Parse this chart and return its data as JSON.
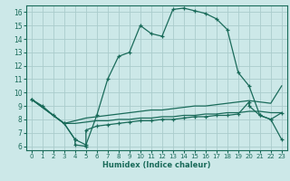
{
  "xlabel": "Humidex (Indice chaleur)",
  "bg_color": "#cce8e8",
  "grid_color": "#b8d8d8",
  "line_color": "#1a6b5a",
  "xlim": [
    -0.5,
    23.5
  ],
  "ylim": [
    5.7,
    16.5
  ],
  "xticks": [
    0,
    1,
    2,
    3,
    4,
    5,
    6,
    7,
    8,
    9,
    10,
    11,
    12,
    13,
    14,
    15,
    16,
    17,
    18,
    19,
    20,
    21,
    22,
    23
  ],
  "yticks": [
    6,
    7,
    8,
    9,
    10,
    11,
    12,
    13,
    14,
    15,
    16
  ],
  "main_x": [
    0,
    1,
    2,
    3,
    4,
    5,
    6,
    7,
    8,
    9,
    10,
    11,
    12,
    13,
    14,
    15,
    16,
    17,
    18,
    19,
    20,
    21,
    22,
    23
  ],
  "main_y": [
    9.5,
    9.0,
    8.3,
    7.7,
    6.5,
    6.1,
    8.3,
    11.0,
    12.7,
    13.0,
    15.0,
    14.4,
    14.2,
    16.2,
    16.3,
    16.1,
    15.9,
    15.5,
    14.7,
    11.5,
    10.5,
    8.3,
    8.0,
    8.5
  ],
  "line2_x": [
    0,
    3,
    4,
    5,
    6,
    7,
    8,
    9,
    10,
    11,
    12,
    13,
    14,
    15,
    16,
    17,
    18,
    19,
    20,
    21,
    22,
    23
  ],
  "line2_y": [
    9.5,
    7.7,
    7.9,
    8.1,
    8.2,
    8.3,
    8.4,
    8.5,
    8.6,
    8.7,
    8.7,
    8.8,
    8.9,
    9.0,
    9.0,
    9.1,
    9.2,
    9.3,
    9.4,
    9.3,
    9.2,
    10.5
  ],
  "line3_x": [
    0,
    3,
    4,
    5,
    6,
    7,
    8,
    9,
    10,
    11,
    12,
    13,
    14,
    15,
    16,
    17,
    18,
    19,
    20,
    21,
    22,
    23
  ],
  "line3_y": [
    9.5,
    7.7,
    7.7,
    7.8,
    7.9,
    7.9,
    8.0,
    8.0,
    8.1,
    8.1,
    8.2,
    8.2,
    8.3,
    8.3,
    8.4,
    8.4,
    8.5,
    8.5,
    8.6,
    8.6,
    8.5,
    8.5
  ],
  "line4_x": [
    0,
    3,
    4,
    4,
    5,
    5,
    6,
    7,
    8,
    9,
    10,
    11,
    12,
    13,
    14,
    15,
    16,
    17,
    18,
    19,
    20,
    20,
    21,
    22,
    23
  ],
  "line4_y": [
    9.5,
    7.7,
    6.5,
    6.1,
    6.0,
    7.2,
    7.5,
    7.6,
    7.7,
    7.8,
    7.9,
    7.9,
    8.0,
    8.0,
    8.1,
    8.2,
    8.2,
    8.3,
    8.3,
    8.4,
    9.3,
    9.0,
    8.3,
    8.0,
    6.5
  ]
}
